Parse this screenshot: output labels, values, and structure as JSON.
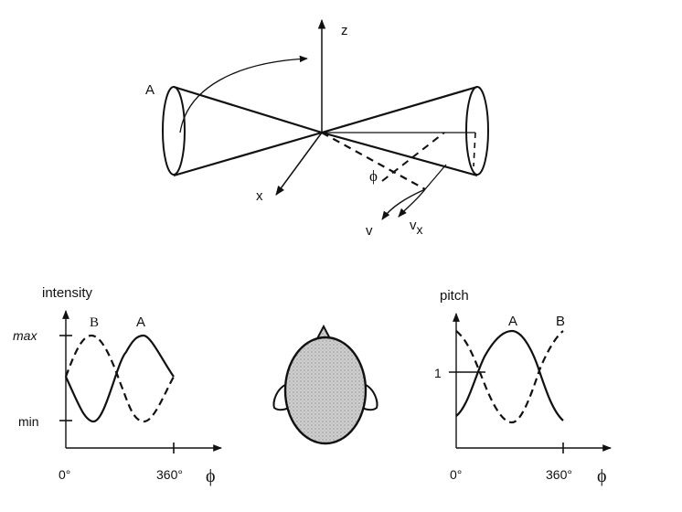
{
  "top_diagram": {
    "axis_z": "z",
    "axis_x": "x",
    "cone_label": "A",
    "angle_label": "ϕ",
    "velocity_v": "v",
    "velocity_vx": "v",
    "velocity_vx_sub": "x"
  },
  "intensity_plot": {
    "title": "intensity",
    "y_max": "max",
    "y_min": "min",
    "x_start": "0°",
    "x_end": "360°",
    "x_symbol": "ϕ",
    "curve_a_label": "A",
    "curve_b_label": "B"
  },
  "pitch_plot": {
    "title": "pitch",
    "y_tick": "1",
    "x_start": "0°",
    "x_end": "360°",
    "x_symbol": "ϕ",
    "curve_a_label": "A",
    "curve_b_label": "B"
  }
}
